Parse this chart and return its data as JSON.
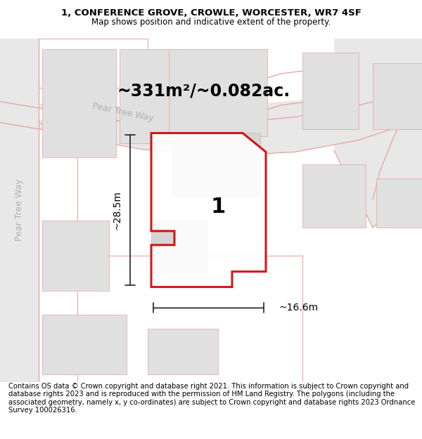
{
  "title_line1": "1, CONFERENCE GROVE, CROWLE, WORCESTER, WR7 4SF",
  "title_line2": "Map shows position and indicative extent of the property.",
  "area_label": "~331m²/~0.082ac.",
  "width_label": "~16.6m",
  "height_label": "~28.5m",
  "plot_number": "1",
  "street_label": "Pear Tree Way",
  "street_label2": "Pear Tree Way",
  "footer_text": "Contains OS data © Crown copyright and database right 2021. This information is subject to Crown copyright and database rights 2023 and is reproduced with the permission of HM Land Registry. The polygons (including the associated geometry, namely x, y co-ordinates) are subject to Crown copyright and database rights 2023 Ordnance Survey 100026316.",
  "bg_map_color": "#f2f2f2",
  "bg_outer_color": "#ffffff",
  "road_color": "#e8e8e8",
  "building_color": "#e0e0e0",
  "plot_outline_color": "#cc0000",
  "road_line_color": "#e8a0a0",
  "dim_line_color": "#222222",
  "street_text_color": "#b0b0b0",
  "title_fontsize": 9.5,
  "subtitle_fontsize": 8.5,
  "area_fontsize": 17,
  "label_fontsize": 10,
  "footer_fontsize": 7.2
}
